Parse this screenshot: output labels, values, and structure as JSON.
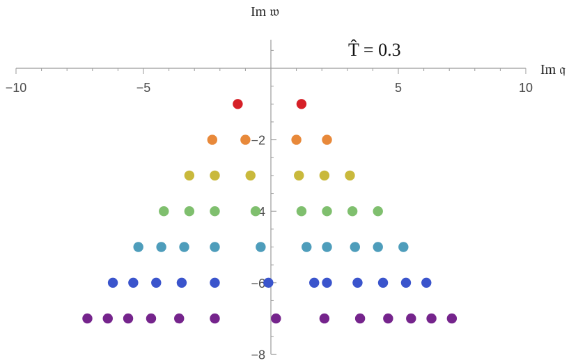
{
  "chart_data": {
    "type": "scatter",
    "xlabel": "Im 𝔮",
    "ylabel": "Im 𝔴",
    "annotation": "T̂ = 0.3",
    "xlim": [
      -10,
      10
    ],
    "ylim": [
      -8,
      0.8
    ],
    "x_ticks": [
      -10,
      -5,
      5,
      10
    ],
    "x_tick_labels": [
      "−10",
      "−5",
      "5",
      "10"
    ],
    "y_ticks": [
      -2,
      -4,
      -6,
      -8
    ],
    "y_tick_labels": [
      "−2",
      "−4",
      "−6",
      "−8"
    ],
    "grid": false,
    "series": [
      {
        "color": "#d62027",
        "points": [
          [
            -1.3,
            -1
          ],
          [
            1.2,
            -1
          ]
        ]
      },
      {
        "color": "#e8893a",
        "points": [
          [
            -2.3,
            -2
          ],
          [
            -1.0,
            -2
          ],
          [
            1.0,
            -2
          ],
          [
            2.2,
            -2
          ]
        ]
      },
      {
        "color": "#c9b93c",
        "points": [
          [
            -3.2,
            -3
          ],
          [
            -2.2,
            -3
          ],
          [
            -0.8,
            -3
          ],
          [
            1.1,
            -3
          ],
          [
            2.1,
            -3
          ],
          [
            3.1,
            -3
          ]
        ]
      },
      {
        "color": "#7fbf6e",
        "points": [
          [
            -4.2,
            -4
          ],
          [
            -3.2,
            -4
          ],
          [
            -2.2,
            -4
          ],
          [
            -0.6,
            -4
          ],
          [
            1.2,
            -4
          ],
          [
            2.2,
            -4
          ],
          [
            3.2,
            -4
          ],
          [
            4.2,
            -4
          ]
        ]
      },
      {
        "color": "#4e9dbb",
        "points": [
          [
            -5.2,
            -5
          ],
          [
            -4.3,
            -5
          ],
          [
            -3.4,
            -5
          ],
          [
            -2.2,
            -5
          ],
          [
            -0.4,
            -5
          ],
          [
            1.4,
            -5
          ],
          [
            2.2,
            -5
          ],
          [
            3.3,
            -5
          ],
          [
            4.2,
            -5
          ],
          [
            5.2,
            -5
          ]
        ]
      },
      {
        "color": "#3a54cc",
        "points": [
          [
            -6.2,
            -6
          ],
          [
            -5.4,
            -6
          ],
          [
            -4.5,
            -6
          ],
          [
            -3.5,
            -6
          ],
          [
            -2.2,
            -6
          ],
          [
            -0.1,
            -6
          ],
          [
            1.7,
            -6
          ],
          [
            2.2,
            -6
          ],
          [
            3.4,
            -6
          ],
          [
            4.4,
            -6
          ],
          [
            5.3,
            -6
          ],
          [
            6.1,
            -6
          ]
        ]
      },
      {
        "color": "#75248c",
        "points": [
          [
            -7.2,
            -7
          ],
          [
            -6.4,
            -7
          ],
          [
            -5.6,
            -7
          ],
          [
            -4.7,
            -7
          ],
          [
            -3.6,
            -7
          ],
          [
            -2.2,
            -7
          ],
          [
            0.2,
            -7
          ],
          [
            2.1,
            -7
          ],
          [
            3.5,
            -7
          ],
          [
            4.6,
            -7
          ],
          [
            5.5,
            -7
          ],
          [
            6.3,
            -7
          ],
          [
            7.1,
            -7
          ]
        ]
      }
    ]
  }
}
